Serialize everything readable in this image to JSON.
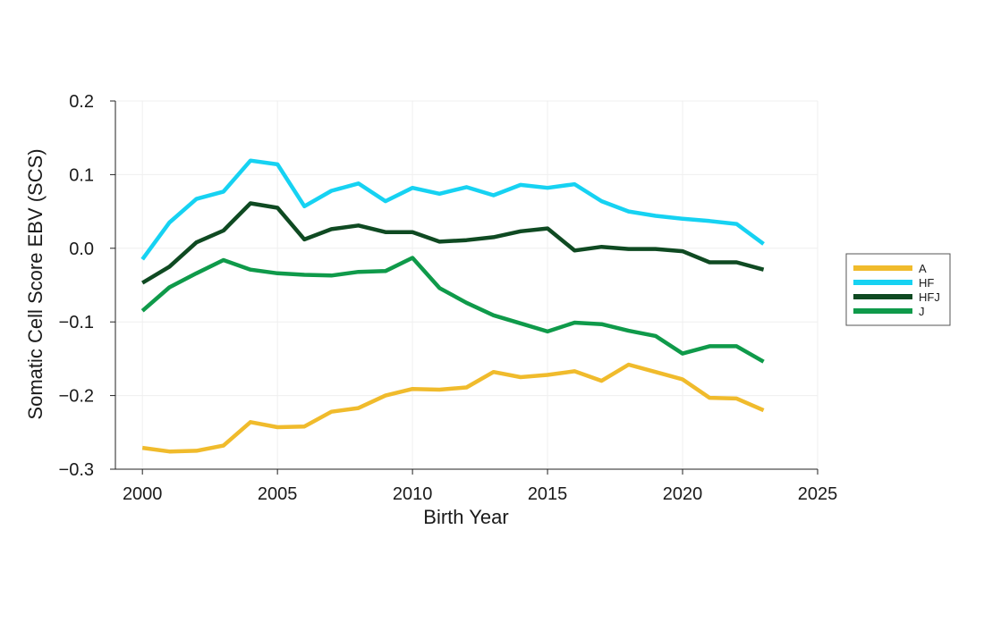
{
  "chart_data": {
    "type": "line",
    "title": "",
    "xlabel": "Birth Year",
    "ylabel": "Somatic Cell Score EBV (SCS)",
    "xlim": [
      1999,
      2025
    ],
    "ylim": [
      -0.3,
      0.2
    ],
    "xticks": [
      2000,
      2005,
      2010,
      2015,
      2020,
      2025
    ],
    "yticks": [
      -0.3,
      -0.2,
      -0.1,
      0.0,
      0.1,
      0.2
    ],
    "ytick_labels": [
      "−0.3",
      "−0.2",
      "−0.1",
      "0.0",
      "0.1",
      "0.2"
    ],
    "xtick_labels": [
      "2000",
      "2005",
      "2010",
      "2015",
      "2020",
      "2025"
    ],
    "grid": true,
    "legend_position": "right",
    "x": [
      2000,
      2001,
      2002,
      2003,
      2004,
      2005,
      2006,
      2007,
      2008,
      2009,
      2010,
      2011,
      2012,
      2013,
      2014,
      2015,
      2016,
      2017,
      2018,
      2019,
      2020,
      2021,
      2022,
      2023
    ],
    "series": [
      {
        "name": "A",
        "color": "#f0bb2c",
        "values": [
          -0.271,
          -0.276,
          -0.275,
          -0.268,
          -0.236,
          -0.243,
          -0.242,
          -0.222,
          -0.217,
          -0.2,
          -0.191,
          -0.192,
          -0.189,
          -0.168,
          -0.175,
          -0.172,
          -0.167,
          -0.18,
          -0.158,
          -0.168,
          -0.178,
          -0.203,
          -0.204,
          -0.22
        ]
      },
      {
        "name": "HF",
        "color": "#16d2f2",
        "values": [
          -0.015,
          0.035,
          0.067,
          0.077,
          0.119,
          0.114,
          0.057,
          0.078,
          0.088,
          0.064,
          0.082,
          0.074,
          0.083,
          0.072,
          0.086,
          0.082,
          0.087,
          0.064,
          0.05,
          0.044,
          0.04,
          0.037,
          0.033,
          0.006
        ]
      },
      {
        "name": "HFJ",
        "color": "#0f4a22",
        "values": [
          -0.047,
          -0.025,
          0.008,
          0.024,
          0.061,
          0.055,
          0.012,
          0.026,
          0.031,
          0.022,
          0.022,
          0.009,
          0.011,
          0.015,
          0.023,
          0.027,
          -0.003,
          0.002,
          -0.001,
          -0.001,
          -0.004,
          -0.019,
          -0.019,
          -0.029
        ]
      },
      {
        "name": "J",
        "color": "#0f9a4a",
        "values": [
          -0.085,
          -0.053,
          -0.034,
          -0.016,
          -0.029,
          -0.034,
          -0.036,
          -0.037,
          -0.032,
          -0.031,
          -0.013,
          -0.054,
          -0.074,
          -0.091,
          -0.102,
          -0.113,
          -0.101,
          -0.103,
          -0.112,
          -0.119,
          -0.143,
          -0.133,
          -0.133,
          -0.154
        ]
      }
    ]
  }
}
